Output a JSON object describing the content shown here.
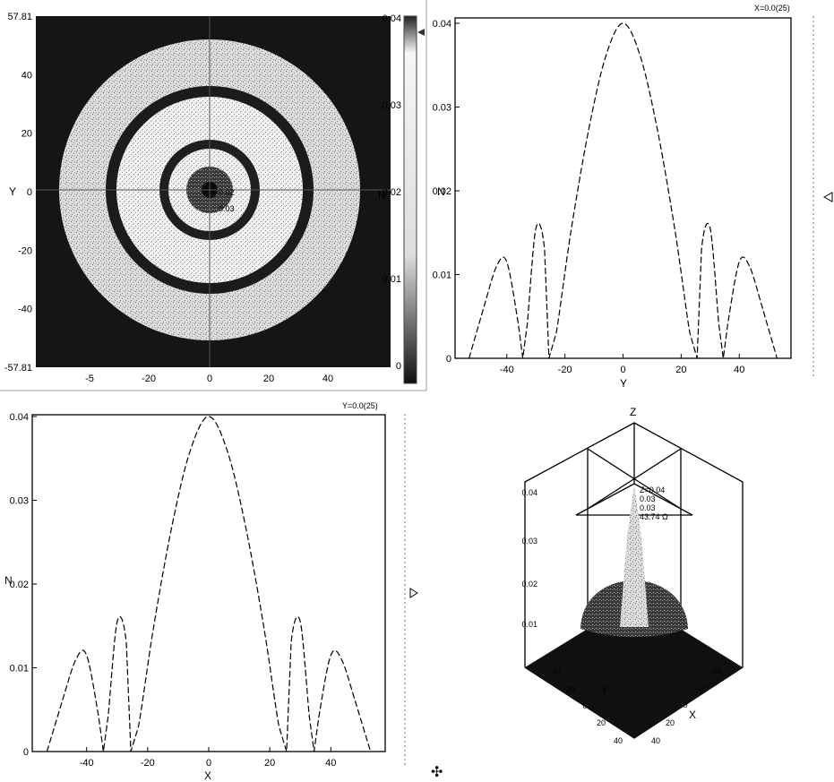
{
  "chart_data": [
    {
      "id": "heatmap",
      "type": "heatmap",
      "description_axes": {
        "xlabel": "",
        "ylabel": "Y"
      },
      "x_ticks": [
        "-5",
        "-20",
        "0",
        "20",
        "40"
      ],
      "y_ticks": [
        "57.81",
        "40",
        "20",
        "0",
        "-20",
        "-40",
        "-57.81"
      ],
      "xlim": [
        -57.81,
        57.81
      ],
      "ylim": [
        -57.81,
        57.81
      ],
      "colorbar": {
        "label": "N",
        "ticks": [
          "0.04",
          "0.03",
          "0.02",
          "0.01",
          "0"
        ],
        "range": [
          0,
          0.04
        ]
      },
      "center_labels": [
        "0.02",
        "0.03"
      ]
    },
    {
      "id": "profile-y",
      "type": "line",
      "xlabel": "Y",
      "ylabel": "N",
      "xlim": [
        -57.81,
        57.81
      ],
      "ylim": [
        0,
        0.04
      ],
      "x_ticks": [
        "-40",
        "-20",
        "0",
        "20",
        "40"
      ],
      "y_ticks": [
        "0.04",
        "0.03",
        "0.02",
        "0.01",
        "0"
      ],
      "corner_label": "X=0.0(25)",
      "x": [
        -53,
        -48,
        -43.5,
        -40,
        -36,
        -34.5,
        -33,
        -30,
        -27,
        -25.5,
        -23,
        -18,
        -12,
        -6,
        0,
        6,
        12,
        18,
        23,
        25.5,
        27,
        30,
        33,
        34.5,
        36,
        40,
        43.5,
        48,
        53
      ],
      "y": [
        0,
        0.006,
        0.011,
        0.0115,
        0.004,
        0,
        0.004,
        0.0155,
        0.013,
        0,
        0.003,
        0.015,
        0.027,
        0.036,
        0.04,
        0.036,
        0.027,
        0.015,
        0.003,
        0,
        0.013,
        0.0155,
        0.004,
        0,
        0.004,
        0.0115,
        0.011,
        0.006,
        0
      ]
    },
    {
      "id": "profile-x",
      "type": "line",
      "xlabel": "X",
      "ylabel": "N",
      "xlim": [
        -57.81,
        57.81
      ],
      "ylim": [
        0,
        0.04
      ],
      "x_ticks": [
        "-40",
        "-20",
        "0",
        "20",
        "40"
      ],
      "y_ticks": [
        "0.04",
        "0.03",
        "0.02",
        "0.01",
        "0"
      ],
      "corner_label": "Y=0.0(25)",
      "x": [
        -53,
        -48,
        -43.5,
        -40,
        -36,
        -34.5,
        -33,
        -30,
        -27,
        -25.5,
        -23,
        -18,
        -12,
        -6,
        0,
        6,
        12,
        18,
        23,
        25.5,
        27,
        30,
        33,
        34.5,
        36,
        40,
        43.5,
        48,
        53
      ],
      "y": [
        0,
        0.006,
        0.011,
        0.0115,
        0.004,
        0,
        0.004,
        0.0155,
        0.013,
        0,
        0.003,
        0.015,
        0.027,
        0.036,
        0.04,
        0.036,
        0.027,
        0.015,
        0.003,
        0,
        0.013,
        0.0155,
        0.004,
        0,
        0.004,
        0.0115,
        0.011,
        0.006,
        0
      ]
    },
    {
      "id": "surface-3d",
      "type": "surface",
      "zlabel": "Z",
      "xlabel": "X",
      "ylabel": "Y",
      "z_ticks": [
        "0.04",
        "0.03",
        "0.02",
        "0.01"
      ],
      "x_ticks": [
        "-40",
        "-20",
        "0",
        "20",
        "40"
      ],
      "y_ticks": [
        "-40",
        "-20",
        "0",
        "20",
        "40"
      ],
      "readout": [
        "Z=0.04",
        "0.03",
        "0.03",
        "43.74 Ω"
      ]
    }
  ],
  "colors": {
    "line": "#000000",
    "background": "#ffffff",
    "map_dark": "#151515",
    "map_light": "#e8e8e8"
  }
}
